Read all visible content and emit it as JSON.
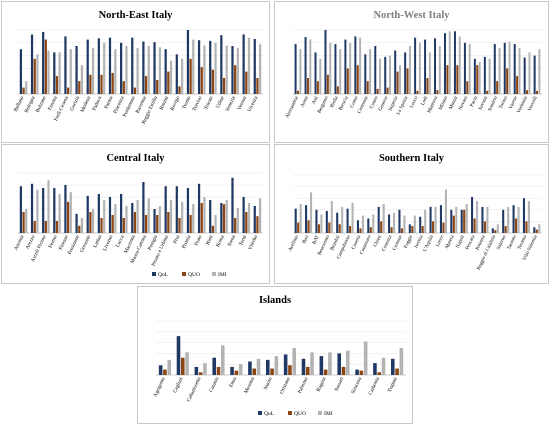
{
  "colors": {
    "QoL": "#1f3864",
    "QUO": "#8b4513",
    "IMI": "#b3b3b3",
    "axis": "#bfbfbf",
    "grid": "#e6e6e6",
    "text": "#000000"
  },
  "legend": [
    "QoL",
    "QUO",
    "IMI"
  ],
  "chart_data": [
    {
      "type": "bar",
      "title": "North-East Italy",
      "ylim": [
        0,
        1
      ],
      "grid": true,
      "legend_position": "none",
      "categories": [
        "Belluno",
        "Bologna",
        "Bolzano",
        "Ferrara",
        "Forlì-Cesena",
        "Gorizia",
        "Modena",
        "Padova",
        "Parma",
        "Piacenza",
        "Pordenone",
        "Ravenna",
        "Reggio Emilia",
        "Rimini",
        "Rovigo",
        "Trento",
        "Treviso",
        "Trieste",
        "Udine",
        "Venezia",
        "Verona",
        "Vicenza"
      ],
      "series": [
        {
          "name": "QoL",
          "values": [
            0.7,
            0.93,
            0.97,
            0.65,
            0.9,
            0.75,
            0.85,
            0.87,
            0.88,
            0.8,
            0.88,
            0.82,
            0.81,
            0.7,
            0.62,
            1.0,
            0.84,
            0.83,
            0.92,
            0.75,
            0.93,
            0.86
          ]
        },
        {
          "name": "QUO",
          "values": [
            0.1,
            0.55,
            0.85,
            0.28,
            0.1,
            0.2,
            0.3,
            0.3,
            0.33,
            0.2,
            0.1,
            0.28,
            0.22,
            0.35,
            0.12,
            0.55,
            0.42,
            0.38,
            0.25,
            0.45,
            0.35,
            0.25
          ]
        },
        {
          "name": "IMI",
          "values": [
            0.2,
            0.62,
            0.68,
            0.65,
            0.7,
            0.45,
            0.72,
            0.8,
            0.7,
            0.75,
            0.72,
            0.75,
            0.73,
            0.52,
            0.55,
            0.85,
            0.76,
            0.8,
            0.76,
            0.72,
            0.88,
            0.78
          ]
        }
      ]
    },
    {
      "type": "bar",
      "title": "North-West Italy",
      "ylim": [
        0,
        1
      ],
      "grid": true,
      "legend_position": "none",
      "categories": [
        "Alessandria",
        "Aosta",
        "Asti",
        "Bergamo",
        "Biella",
        "Brescia",
        "Como",
        "Cremona",
        "Cuneo",
        "Genova",
        "Imperia",
        "La Spezia",
        "Lecco",
        "Lodi",
        "Mantova",
        "Milano",
        "Monza",
        "Novara",
        "Pavia",
        "Savona",
        "Sondrio",
        "Torino",
        "Varese",
        "Verbania",
        "Vercelli"
      ],
      "series": [
        {
          "name": "QoL",
          "values": [
            0.78,
            0.89,
            0.65,
            1.0,
            0.78,
            0.85,
            0.9,
            0.62,
            0.75,
            0.58,
            0.68,
            0.65,
            0.88,
            0.85,
            0.87,
            0.95,
            0.98,
            0.8,
            0.55,
            0.58,
            0.78,
            0.8,
            0.78,
            0.57,
            0.6
          ]
        },
        {
          "name": "QUO",
          "values": [
            0.05,
            0.25,
            0.2,
            0.3,
            0.12,
            0.4,
            0.45,
            0.2,
            0.08,
            0.1,
            0.35,
            0.4,
            0.05,
            0.25,
            0.06,
            0.45,
            0.45,
            0.2,
            0.45,
            0.05,
            0.2,
            0.4,
            0.28,
            0.06,
            0.05
          ]
        },
        {
          "name": "IMI",
          "values": [
            0.7,
            0.85,
            0.55,
            0.8,
            0.7,
            0.8,
            0.88,
            0.7,
            0.55,
            0.6,
            0.45,
            0.75,
            0.8,
            0.65,
            0.75,
            0.98,
            0.9,
            0.78,
            0.5,
            0.55,
            0.72,
            0.82,
            0.72,
            0.65,
            0.7
          ]
        }
      ]
    },
    {
      "type": "bar",
      "title": "Central Italy",
      "ylim": [
        0,
        1
      ],
      "grid": true,
      "legend_position": "bottom-right",
      "categories": [
        "Ancona",
        "Arezzo",
        "Ascoli Piceno",
        "Fermo",
        "Firenze",
        "Frosinone",
        "Grosseto",
        "Latina",
        "Livorno",
        "Lucca",
        "Macerata",
        "Massa-Carrara",
        "Perugia",
        "Pesaro e Urbino",
        "Pisa",
        "Pistoia",
        "Prato",
        "Rieti",
        "Roma",
        "Siena",
        "Terni",
        "Viterbo"
      ],
      "series": [
        {
          "name": "QoL",
          "values": [
            0.78,
            0.82,
            0.75,
            0.75,
            0.8,
            0.32,
            0.62,
            0.65,
            0.6,
            0.65,
            0.5,
            0.85,
            0.4,
            0.78,
            0.78,
            0.75,
            0.82,
            0.55,
            0.5,
            0.92,
            0.6,
            0.45
          ]
        },
        {
          "name": "QUO",
          "values": [
            0.35,
            0.2,
            0.2,
            0.2,
            0.52,
            0.12,
            0.35,
            0.25,
            0.3,
            0.25,
            0.35,
            0.3,
            0.3,
            0.35,
            0.25,
            0.3,
            0.5,
            0.12,
            0.48,
            0.25,
            0.35,
            0.28
          ]
        },
        {
          "name": "IMI",
          "values": [
            0.4,
            0.72,
            0.88,
            0.65,
            0.68,
            0.25,
            0.4,
            0.55,
            0.48,
            0.45,
            0.55,
            0.58,
            0.45,
            0.55,
            0.52,
            0.48,
            0.6,
            0.3,
            0.55,
            0.42,
            0.5,
            0.58
          ]
        }
      ]
    },
    {
      "type": "bar",
      "title": "Southern Italy",
      "ylim": [
        0,
        1
      ],
      "grid": true,
      "legend_position": "none",
      "categories": [
        "Avellino",
        "Bari",
        "BAT",
        "Benevento",
        "Brindisi",
        "Campobasso",
        "Caserta",
        "Catanzaro",
        "Chieti",
        "Cosenza",
        "Crotone",
        "Foggia",
        "Isernia",
        "L'Aquila",
        "Lecce",
        "Matera",
        "Napoli",
        "Pescara",
        "Potenza",
        "Reggio di Calabria",
        "Salerno",
        "Taranto",
        "Teramo",
        "Vibo Valentia"
      ],
      "series": [
        {
          "name": "QoL",
          "values": [
            0.42,
            0.48,
            0.4,
            0.38,
            0.35,
            0.42,
            0.22,
            0.25,
            0.45,
            0.32,
            0.4,
            0.15,
            0.28,
            0.45,
            0.48,
            0.4,
            0.4,
            0.62,
            0.45,
            0.08,
            0.4,
            0.48,
            0.6,
            0.1
          ]
        },
        {
          "name": "QUO",
          "values": [
            0.18,
            0.22,
            0.15,
            0.18,
            0.15,
            0.12,
            0.08,
            0.1,
            0.2,
            0.1,
            0.08,
            0.12,
            0.12,
            0.2,
            0.18,
            0.3,
            0.4,
            0.25,
            0.2,
            0.05,
            0.12,
            0.25,
            0.2,
            0.06
          ]
        },
        {
          "name": "IMI",
          "values": [
            0.5,
            0.7,
            0.32,
            0.55,
            0.45,
            0.52,
            0.3,
            0.32,
            0.5,
            0.35,
            0.3,
            0.3,
            0.4,
            0.45,
            0.75,
            0.45,
            0.5,
            0.55,
            0.45,
            0.15,
            0.45,
            0.45,
            0.55,
            0.15
          ]
        }
      ]
    },
    {
      "type": "bar",
      "title": "Islands",
      "ylim": [
        0,
        1
      ],
      "grid": true,
      "legend_position": "bottom-right",
      "categories": [
        "Agrigento",
        "Cagliari",
        "Caltanissetta",
        "Catania",
        "Enna",
        "Messina",
        "Nuoro",
        "Oristano",
        "Palermo",
        "Ragusa",
        "Sassari",
        "Siracusa",
        "Carbonia",
        "Trapani"
      ],
      "series": [
        {
          "name": "QoL",
          "values": [
            0.18,
            0.72,
            0.15,
            0.32,
            0.15,
            0.25,
            0.28,
            0.38,
            0.3,
            0.35,
            0.4,
            0.1,
            0.22,
            0.3
          ]
        },
        {
          "name": "QUO",
          "values": [
            0.1,
            0.32,
            0.05,
            0.15,
            0.08,
            0.12,
            0.12,
            0.18,
            0.15,
            0.1,
            0.15,
            0.08,
            0.05,
            0.12
          ]
        },
        {
          "name": "IMI",
          "values": [
            0.28,
            0.42,
            0.22,
            0.55,
            0.2,
            0.3,
            0.35,
            0.5,
            0.42,
            0.42,
            0.45,
            0.62,
            0.32,
            0.5
          ]
        }
      ]
    }
  ]
}
